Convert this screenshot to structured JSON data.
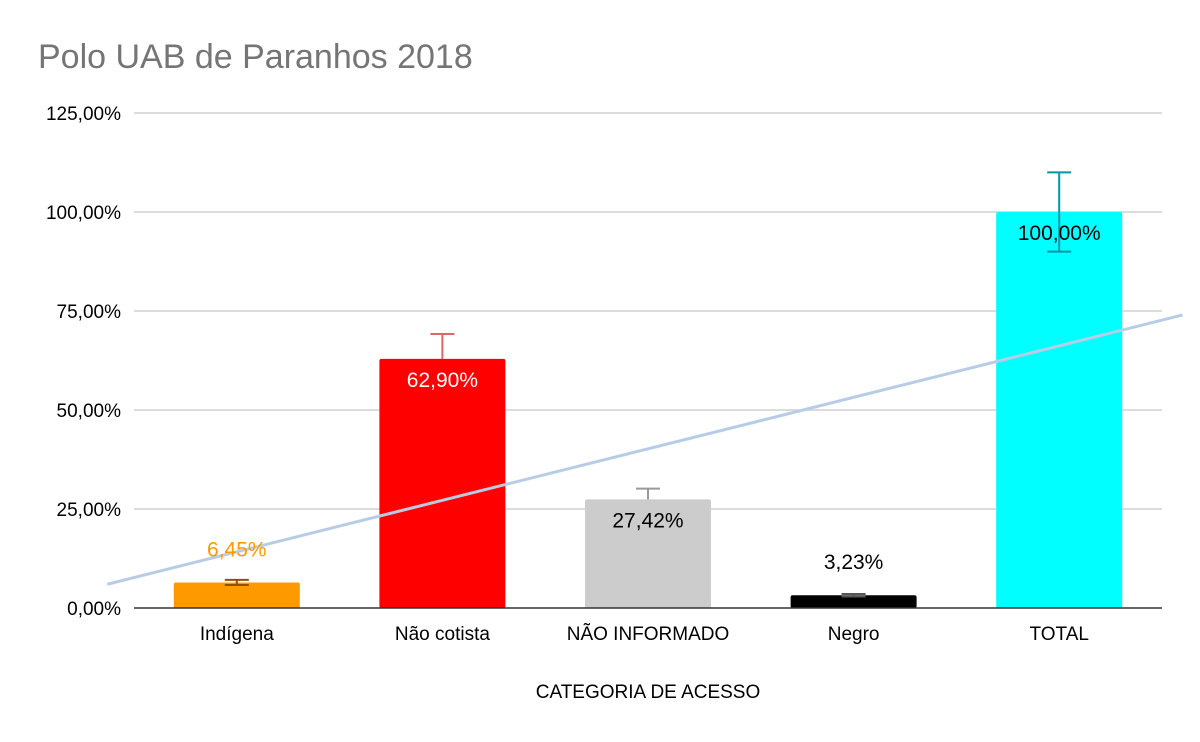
{
  "chart_data": {
    "type": "bar",
    "title": "Polo UAB de Paranhos  2018",
    "xlabel": "CATEGORIA DE ACESSO",
    "ylabel": "",
    "ylim": [
      0,
      125
    ],
    "yticks": [
      0,
      25,
      50,
      75,
      100,
      125
    ],
    "ytick_labels": [
      "0,00%",
      "25,00%",
      "50,00%",
      "75,00%",
      "100,00%",
      "125,00%"
    ],
    "grid": true,
    "categories": [
      "Indígena",
      "Não cotista",
      "NÃO INFORMADO",
      "Negro",
      "TOTAL"
    ],
    "values": [
      6.45,
      62.9,
      27.42,
      3.23,
      100
    ],
    "data_labels": [
      "6,45%",
      "62,90%",
      "27,42%",
      "3,23%",
      "100,00%"
    ],
    "bar_colors": [
      "#ff9900",
      "#ff0000",
      "#cccccc",
      "#000000",
      "#00ffff"
    ],
    "label_colors": [
      "#ff9900",
      "#ffffff",
      "#000000",
      "#000000",
      "#000000"
    ],
    "error_bars": {
      "positive": [
        0.65,
        6.3,
        2.74,
        0.32,
        10
      ],
      "negative": [
        0.65,
        0,
        0,
        0.32,
        10
      ],
      "colors": [
        "#994c00",
        "#e06666",
        "#999999",
        "#555555",
        "#0097a7"
      ]
    },
    "trendline": {
      "type": "linear",
      "color": "#b7cde6",
      "start": [
        0.37,
        6
      ],
      "end": [
        5.6,
        74
      ]
    }
  }
}
